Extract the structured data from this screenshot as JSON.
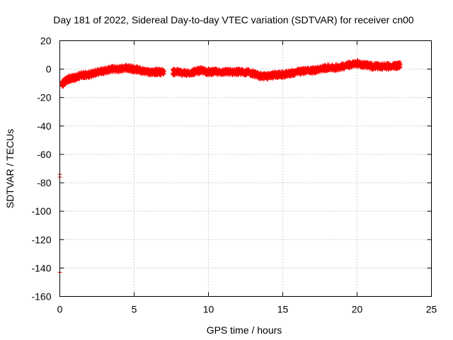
{
  "chart_data": {
    "type": "scatter",
    "title": "Day 181 of 2022, Sidereal Day-to-day VTEC variation (SDTVAR) for receiver cn00",
    "xlabel": "GPS time / hours",
    "ylabel": "SDTVAR / TECUs",
    "xlim": [
      0,
      25
    ],
    "ylim": [
      -160,
      20
    ],
    "xticks": [
      0,
      5,
      10,
      15,
      20,
      25
    ],
    "yticks": [
      20,
      0,
      -20,
      -40,
      -60,
      -80,
      -100,
      -120,
      -140,
      -160
    ],
    "grid": true,
    "marker": "plus",
    "color": "#ff0000",
    "series": [
      {
        "name": "SDTVAR",
        "trend": [
          [
            0.15,
            -11
          ],
          [
            0.3,
            -9
          ],
          [
            0.6,
            -7
          ],
          [
            1.0,
            -6
          ],
          [
            1.5,
            -4
          ],
          [
            2.0,
            -4
          ],
          [
            2.5,
            -2
          ],
          [
            3.0,
            -1
          ],
          [
            3.5,
            0
          ],
          [
            4.0,
            0
          ],
          [
            4.5,
            1
          ],
          [
            5.0,
            0
          ],
          [
            5.5,
            -1
          ],
          [
            6.0,
            -2
          ],
          [
            6.5,
            -2
          ],
          [
            7.0,
            -2
          ],
          [
            7.6,
            -2
          ],
          [
            8.0,
            -2
          ],
          [
            8.5,
            -3
          ],
          [
            9.0,
            -2
          ],
          [
            9.5,
            -1
          ],
          [
            10.0,
            -2
          ],
          [
            10.5,
            -2
          ],
          [
            11.0,
            -2
          ],
          [
            11.5,
            -2
          ],
          [
            12.0,
            -2
          ],
          [
            12.5,
            -2
          ],
          [
            13.0,
            -3
          ],
          [
            13.5,
            -5
          ],
          [
            14.0,
            -5
          ],
          [
            14.5,
            -4
          ],
          [
            15.0,
            -4
          ],
          [
            15.5,
            -3
          ],
          [
            16.0,
            -2
          ],
          [
            16.5,
            -1
          ],
          [
            17.0,
            -1
          ],
          [
            17.5,
            0
          ],
          [
            18.0,
            1
          ],
          [
            18.5,
            1
          ],
          [
            19.0,
            2
          ],
          [
            19.5,
            3
          ],
          [
            20.0,
            4
          ],
          [
            20.5,
            3
          ],
          [
            21.0,
            2
          ],
          [
            21.5,
            2
          ],
          [
            22.0,
            2
          ],
          [
            22.5,
            2
          ],
          [
            22.9,
            3
          ]
        ],
        "outliers": [
          [
            0.0,
            -74
          ],
          [
            0.0,
            -76
          ],
          [
            0.0,
            -143
          ]
        ]
      }
    ]
  }
}
